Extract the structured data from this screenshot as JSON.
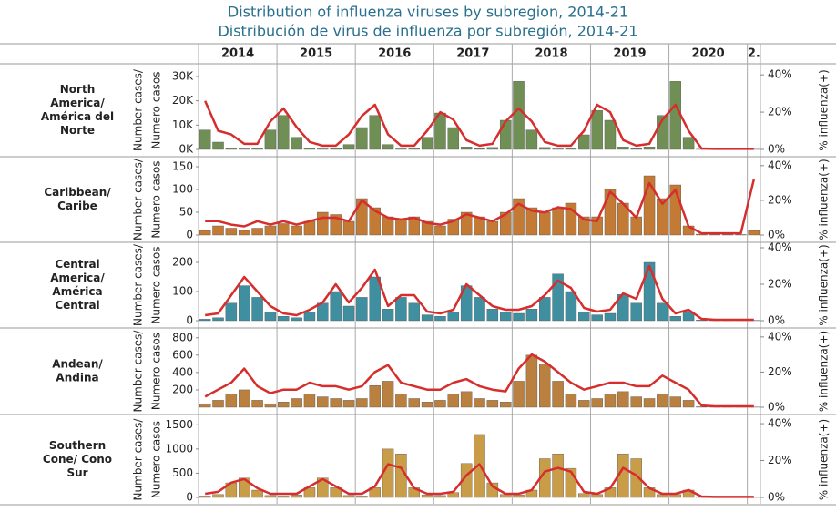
{
  "title": [
    "Distribution of influenza viruses by subregion, 2014-21",
    "Distribución de virus de influenza por subregión, 2014-21"
  ],
  "years": [
    "2014",
    "2015",
    "2016",
    "2017",
    "2018",
    "2019",
    "2020",
    "2."
  ],
  "chart_data": [
    {
      "type": "bar",
      "title": [
        "North",
        "America/",
        "América del",
        "Norte"
      ],
      "ylabel": [
        "Number cases/",
        "Numero casos"
      ],
      "y2label": "% influenza(+)",
      "categories": [
        null,
        null,
        null,
        null,
        null,
        null,
        null,
        null,
        null,
        null,
        null,
        null,
        null,
        null,
        null,
        null,
        null,
        null,
        null,
        null,
        null,
        null,
        null,
        null,
        null,
        null,
        null,
        null,
        null,
        null,
        null,
        null,
        null,
        null,
        null,
        null,
        null,
        null,
        null,
        null,
        null,
        null,
        null
      ],
      "ylim": [
        0,
        33000
      ],
      "yticks": [
        {
          "value": 0,
          "label": "0K"
        },
        {
          "value": 10000,
          "label": "10K"
        },
        {
          "value": 20000,
          "label": "20K"
        },
        {
          "value": 30000,
          "label": "30K"
        }
      ],
      "y2lim": [
        0,
        43
      ],
      "y2ticks": [
        {
          "value": 0,
          "label": "0%"
        },
        {
          "value": 20,
          "label": "20%"
        },
        {
          "value": 40,
          "label": "40%"
        }
      ],
      "series": [
        {
          "color": "#6f8f55",
          "values": [
            8000,
            3000,
            500,
            200,
            500,
            8000,
            14000,
            5000,
            500,
            200,
            400,
            2000,
            9000,
            14000,
            2000,
            200,
            500,
            5000,
            15000,
            9000,
            1000,
            300,
            800,
            12000,
            28000,
            8000,
            800,
            200,
            600,
            6000,
            16000,
            12000,
            1000,
            300,
            1000,
            14000,
            28000,
            5000,
            50,
            30,
            50,
            50,
            50
          ]
        },
        {
          "color": "#d62d2d",
          "axis": "y2",
          "values": [
            26,
            10,
            8,
            3,
            3,
            15,
            22,
            12,
            4,
            2,
            2,
            8,
            18,
            24,
            8,
            2,
            2,
            10,
            20,
            16,
            5,
            2,
            3,
            15,
            22,
            15,
            4,
            2,
            2,
            10,
            24,
            20,
            5,
            2,
            3,
            16,
            24,
            10,
            0.5,
            0.3,
            0.3,
            0.3,
            0.3
          ]
        }
      ]
    },
    {
      "type": "bar",
      "title": [
        "Caribbean/",
        "Caribe"
      ],
      "ylabel": [
        "Number cases/",
        "Numero casos"
      ],
      "y2label": "% influenza(+)",
      "categories": [
        null,
        null,
        null,
        null,
        null,
        null,
        null,
        null,
        null,
        null,
        null,
        null,
        null,
        null,
        null,
        null,
        null,
        null,
        null,
        null,
        null,
        null,
        null,
        null,
        null,
        null,
        null,
        null,
        null,
        null,
        null,
        null,
        null,
        null,
        null,
        null,
        null,
        null,
        null,
        null,
        null,
        null,
        null
      ],
      "ylim": [
        0,
        160
      ],
      "yticks": [
        0,
        50,
        100,
        150
      ],
      "y2lim": [
        0,
        42
      ],
      "y2ticks": [
        {
          "value": 0,
          "label": "0%"
        },
        {
          "value": 20,
          "label": "20%"
        },
        {
          "value": 40,
          "label": "40%"
        }
      ],
      "series": [
        {
          "color": "#c27a35",
          "values": [
            10,
            20,
            15,
            10,
            15,
            20,
            25,
            20,
            30,
            50,
            45,
            30,
            80,
            60,
            40,
            35,
            40,
            30,
            20,
            35,
            50,
            40,
            30,
            50,
            80,
            60,
            50,
            60,
            70,
            40,
            40,
            100,
            70,
            40,
            130,
            80,
            110,
            20,
            2,
            2,
            1,
            1,
            10
          ]
        },
        {
          "color": "#d62d2d",
          "axis": "y2",
          "values": [
            8,
            8,
            6,
            5,
            8,
            6,
            8,
            6,
            8,
            10,
            10,
            8,
            20,
            14,
            10,
            9,
            10,
            7,
            6,
            8,
            12,
            10,
            8,
            12,
            18,
            14,
            13,
            16,
            15,
            9,
            8,
            25,
            18,
            10,
            30,
            18,
            26,
            5,
            1,
            1,
            1,
            1,
            32
          ]
        }
      ]
    },
    {
      "type": "bar",
      "title": [
        "Central",
        "America/",
        "América",
        "Central"
      ],
      "ylabel": [
        "Number cases/",
        "Numero casos"
      ],
      "y2label": "% influenza(+)",
      "categories": [
        null,
        null,
        null,
        null,
        null,
        null,
        null,
        null,
        null,
        null,
        null,
        null,
        null,
        null,
        null,
        null,
        null,
        null,
        null,
        null,
        null,
        null,
        null,
        null,
        null,
        null,
        null,
        null,
        null,
        null,
        null,
        null,
        null,
        null,
        null,
        null,
        null,
        null,
        null,
        null,
        null,
        null,
        null
      ],
      "ylim": [
        0,
        250
      ],
      "yticks": [
        0,
        100,
        200
      ],
      "y2lim": [
        0,
        40
      ],
      "y2ticks": [
        {
          "value": 0,
          "label": "0%"
        },
        {
          "value": 20,
          "label": "20%"
        },
        {
          "value": 40,
          "label": "40%"
        }
      ],
      "series": [
        {
          "color": "#3f8fa0",
          "values": [
            5,
            10,
            60,
            120,
            80,
            30,
            15,
            10,
            30,
            60,
            100,
            50,
            80,
            150,
            40,
            80,
            60,
            20,
            15,
            30,
            120,
            80,
            40,
            30,
            25,
            40,
            80,
            160,
            100,
            30,
            20,
            25,
            90,
            60,
            200,
            60,
            15,
            30,
            2,
            1,
            1,
            1,
            1
          ]
        },
        {
          "color": "#d62d2d",
          "axis": "y2",
          "values": [
            3,
            4,
            14,
            24,
            16,
            8,
            4,
            3,
            6,
            10,
            20,
            10,
            18,
            28,
            8,
            14,
            14,
            5,
            4,
            6,
            20,
            14,
            8,
            6,
            6,
            8,
            14,
            22,
            18,
            7,
            5,
            6,
            15,
            12,
            30,
            12,
            4,
            6,
            1,
            0.5,
            0.5,
            0.5,
            0.5
          ]
        }
      ]
    },
    {
      "type": "bar",
      "title": [
        "Andean/",
        "Andina"
      ],
      "ylabel": [
        "Number cases/",
        "Numero casos"
      ],
      "y2label": "% influenza(+)",
      "categories": [
        null,
        null,
        null,
        null,
        null,
        null,
        null,
        null,
        null,
        null,
        null,
        null,
        null,
        null,
        null,
        null,
        null,
        null,
        null,
        null,
        null,
        null,
        null,
        null,
        null,
        null,
        null,
        null,
        null,
        null,
        null,
        null,
        null,
        null,
        null,
        null,
        null,
        null,
        null,
        null,
        null,
        null,
        null
      ],
      "ylim": [
        0,
        850
      ],
      "yticks": [
        200,
        400,
        600,
        800
      ],
      "y2lim": [
        0,
        42
      ],
      "y2ticks": [
        {
          "value": 0,
          "label": "0%"
        },
        {
          "value": 20,
          "label": "20%"
        },
        {
          "value": 40,
          "label": "40%"
        }
      ],
      "series": [
        {
          "color": "#b9803f",
          "values": [
            40,
            80,
            150,
            200,
            80,
            40,
            60,
            100,
            150,
            120,
            100,
            80,
            100,
            250,
            300,
            150,
            100,
            60,
            80,
            150,
            180,
            100,
            80,
            60,
            300,
            600,
            500,
            300,
            150,
            80,
            100,
            150,
            180,
            120,
            100,
            150,
            120,
            80,
            5,
            3,
            2,
            2,
            2
          ]
        },
        {
          "color": "#d62d2d",
          "axis": "y2",
          "values": [
            6,
            10,
            14,
            22,
            12,
            8,
            10,
            10,
            14,
            12,
            12,
            10,
            12,
            20,
            24,
            14,
            12,
            10,
            10,
            14,
            16,
            12,
            10,
            9,
            22,
            30,
            26,
            20,
            14,
            10,
            12,
            14,
            14,
            12,
            12,
            18,
            14,
            10,
            1,
            0.5,
            0.5,
            0.5,
            0.5
          ]
        }
      ]
    },
    {
      "type": "bar",
      "title": [
        "Southern",
        "Cone/     Cono",
        "Sur"
      ],
      "ylabel": [
        "Number cases/",
        "Numero casos"
      ],
      "y2label": "% influenza(+)",
      "categories": [
        null,
        null,
        null,
        null,
        null,
        null,
        null,
        null,
        null,
        null,
        null,
        null,
        null,
        null,
        null,
        null,
        null,
        null,
        null,
        null,
        null,
        null,
        null,
        null,
        null,
        null,
        null,
        null,
        null,
        null,
        null,
        null,
        null,
        null,
        null,
        null,
        null,
        null,
        null,
        null,
        null,
        null,
        null
      ],
      "ylim": [
        0,
        1600
      ],
      "yticks": [
        0,
        500,
        1000,
        1500
      ],
      "y2lim": [
        0,
        42
      ],
      "y2ticks": [
        {
          "value": 0,
          "label": "0%"
        },
        {
          "value": 20,
          "label": "20%"
        },
        {
          "value": 40,
          "label": "40%"
        }
      ],
      "series": [
        {
          "color": "#c99c48",
          "values": [
            30,
            60,
            300,
            400,
            150,
            40,
            30,
            50,
            200,
            400,
            200,
            40,
            30,
            200,
            1000,
            900,
            200,
            50,
            40,
            100,
            700,
            1300,
            300,
            60,
            50,
            150,
            800,
            900,
            600,
            80,
            60,
            200,
            900,
            800,
            200,
            60,
            60,
            150,
            5,
            2,
            2,
            2,
            2
          ]
        },
        {
          "color": "#d62d2d",
          "axis": "y2",
          "values": [
            2,
            3,
            8,
            10,
            5,
            2,
            2,
            2,
            6,
            10,
            6,
            2,
            2,
            6,
            18,
            16,
            5,
            2,
            2,
            3,
            12,
            18,
            6,
            2,
            2,
            4,
            14,
            16,
            14,
            3,
            2,
            5,
            16,
            12,
            5,
            2,
            2,
            4,
            0.5,
            0.3,
            0.3,
            0.3,
            0.3
          ]
        }
      ]
    }
  ]
}
